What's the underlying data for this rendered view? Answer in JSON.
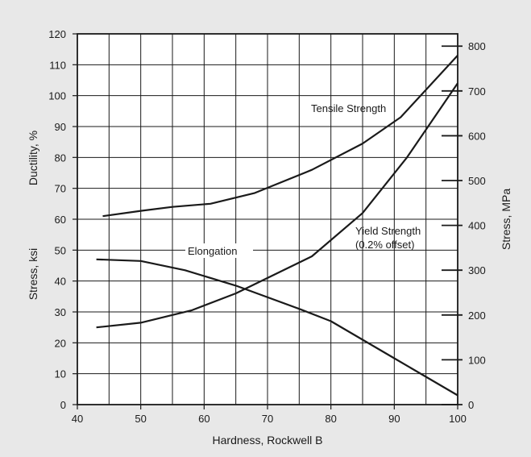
{
  "chart_data": {
    "type": "line",
    "title": "",
    "xlabel": "Hardness, Rockwell B",
    "ylabel_left_stress": "Stress, ksi",
    "ylabel_left_ductility": "Ductility, %",
    "ylabel_right": "Stress, MPa",
    "xlim": [
      40,
      100
    ],
    "ylim": [
      0,
      120
    ],
    "y2lim": [
      0,
      827.4
    ],
    "grid": true,
    "x_ticks": [
      "40",
      "50",
      "60",
      "70",
      "80",
      "90",
      "100"
    ],
    "y_ticks": [
      "0",
      "10",
      "20",
      "30",
      "40",
      "50",
      "60",
      "70",
      "80",
      "90",
      "100",
      "110",
      "120"
    ],
    "y2_ticks": [
      "0",
      "100",
      "200",
      "300",
      "400",
      "500",
      "600",
      "700",
      "800"
    ],
    "series": [
      {
        "name": "Tensile Strength",
        "x": [
          44,
          50,
          55,
          61,
          68,
          77,
          85,
          91,
          100
        ],
        "y": [
          61,
          62.7,
          64,
          65,
          68.5,
          76,
          84.5,
          93,
          113
        ]
      },
      {
        "name": "Yield Strength (0.2% offset)",
        "x": [
          43,
          50,
          58,
          65,
          77,
          85,
          92,
          100
        ],
        "y": [
          25,
          26.5,
          30.5,
          36,
          48,
          62,
          80,
          104
        ]
      },
      {
        "name": "Elongation",
        "x": [
          43,
          50,
          57,
          65,
          75,
          80,
          90,
          100
        ],
        "y": [
          47,
          46.5,
          43.5,
          38.5,
          31,
          27,
          15,
          3
        ]
      }
    ],
    "annotations": [
      {
        "text": "Tensile Strength",
        "series": 0
      },
      {
        "text": "Yield Strength",
        "series": 1
      },
      {
        "text": "(0.2% offset)",
        "series": 1
      },
      {
        "text": "Elongation",
        "series": 2
      }
    ],
    "colors": {
      "background": "#e8e8e8",
      "plot": "#ffffff",
      "line": "#1a1a1a"
    }
  }
}
